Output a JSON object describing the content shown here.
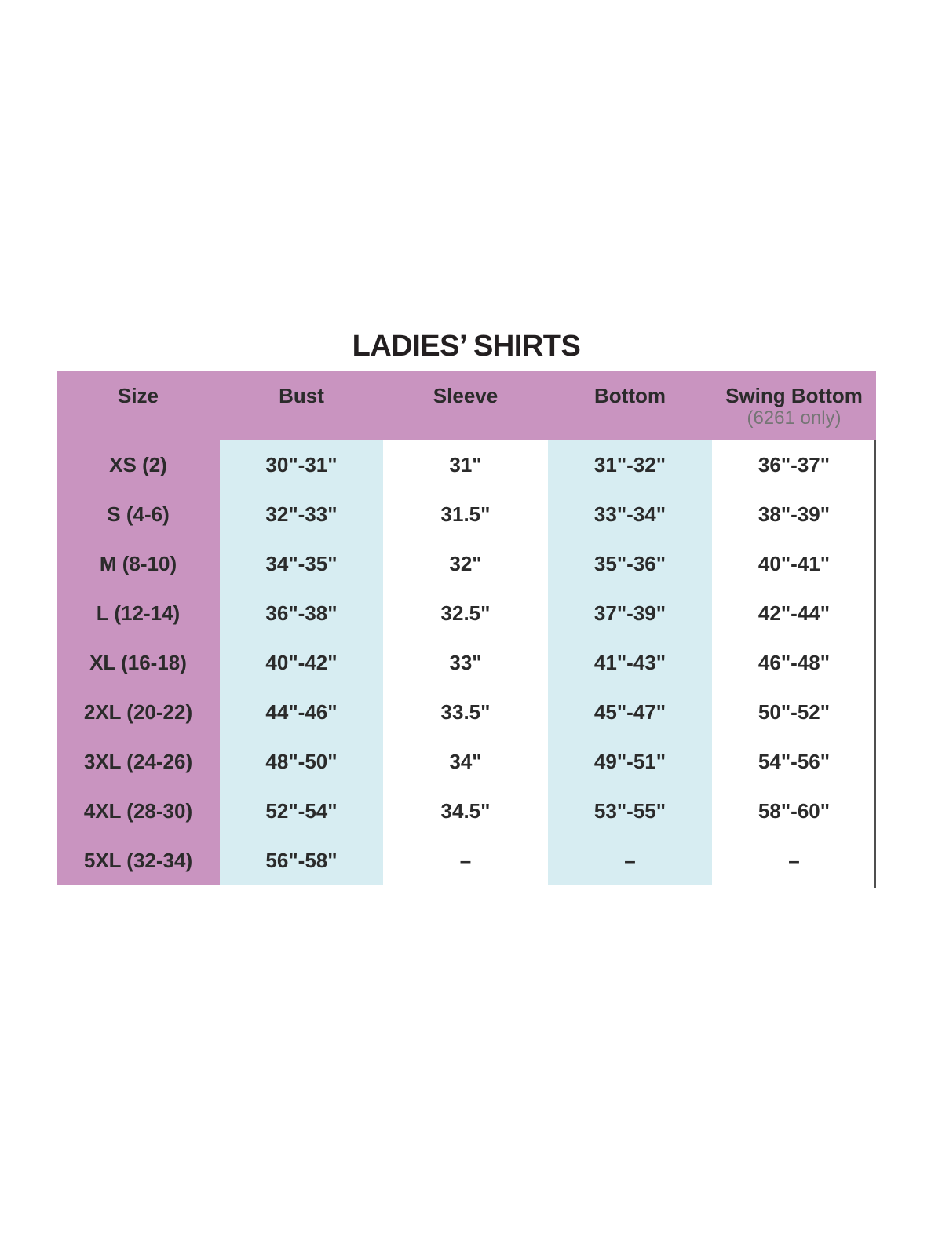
{
  "chart_data": {
    "type": "table",
    "title": "LADIES’ SHIRTS",
    "columns": [
      {
        "label": "Size",
        "sublabel": ""
      },
      {
        "label": "Bust",
        "sublabel": ""
      },
      {
        "label": "Sleeve",
        "sublabel": ""
      },
      {
        "label": "Bottom",
        "sublabel": ""
      },
      {
        "label": "Swing Bottom",
        "sublabel": "(6261 only)"
      }
    ],
    "rows": [
      {
        "cells": [
          "XS (2)",
          "30\"-31\"",
          "31\"",
          "31\"-32\"",
          "36\"-37\""
        ]
      },
      {
        "cells": [
          "S (4-6)",
          "32\"-33\"",
          "31.5\"",
          "33\"-34\"",
          "38\"-39\""
        ]
      },
      {
        "cells": [
          "M (8-10)",
          "34\"-35\"",
          "32\"",
          "35\"-36\"",
          "40\"-41\""
        ]
      },
      {
        "cells": [
          "L (12-14)",
          "36\"-38\"",
          "32.5\"",
          "37\"-39\"",
          "42\"-44\""
        ]
      },
      {
        "cells": [
          "XL (16-18)",
          "40\"-42\"",
          "33\"",
          "41\"-43\"",
          "46\"-48\""
        ]
      },
      {
        "cells": [
          "2XL (20-22)",
          "44\"-46\"",
          "33.5\"",
          "45\"-47\"",
          "50\"-52\""
        ]
      },
      {
        "cells": [
          "3XL (24-26)",
          "48\"-50\"",
          "34\"",
          "49\"-51\"",
          "54\"-56\""
        ]
      },
      {
        "cells": [
          "4XL (28-30)",
          "52\"-54\"",
          "34.5\"",
          "53\"-55\"",
          "58\"-60\""
        ]
      },
      {
        "cells": [
          "5XL (32-34)",
          "56\"-58\"",
          "–",
          "–",
          "–"
        ]
      }
    ],
    "layout_hints": {
      "highlighted_columns": [
        "Bust",
        "Bottom"
      ],
      "size_column_bg": "pink",
      "grid": "off",
      "right_border": true
    }
  },
  "colors": {
    "header_bg": "#c994c0",
    "size_col_bg": "#c994c0",
    "highlight_col_bg": "#d7edf2",
    "text": "#2b2b2b",
    "title_text": "#231f20",
    "subheader_text": "#757575",
    "border_line": "#4f4f4f",
    "page_bg": "#ffffff"
  }
}
